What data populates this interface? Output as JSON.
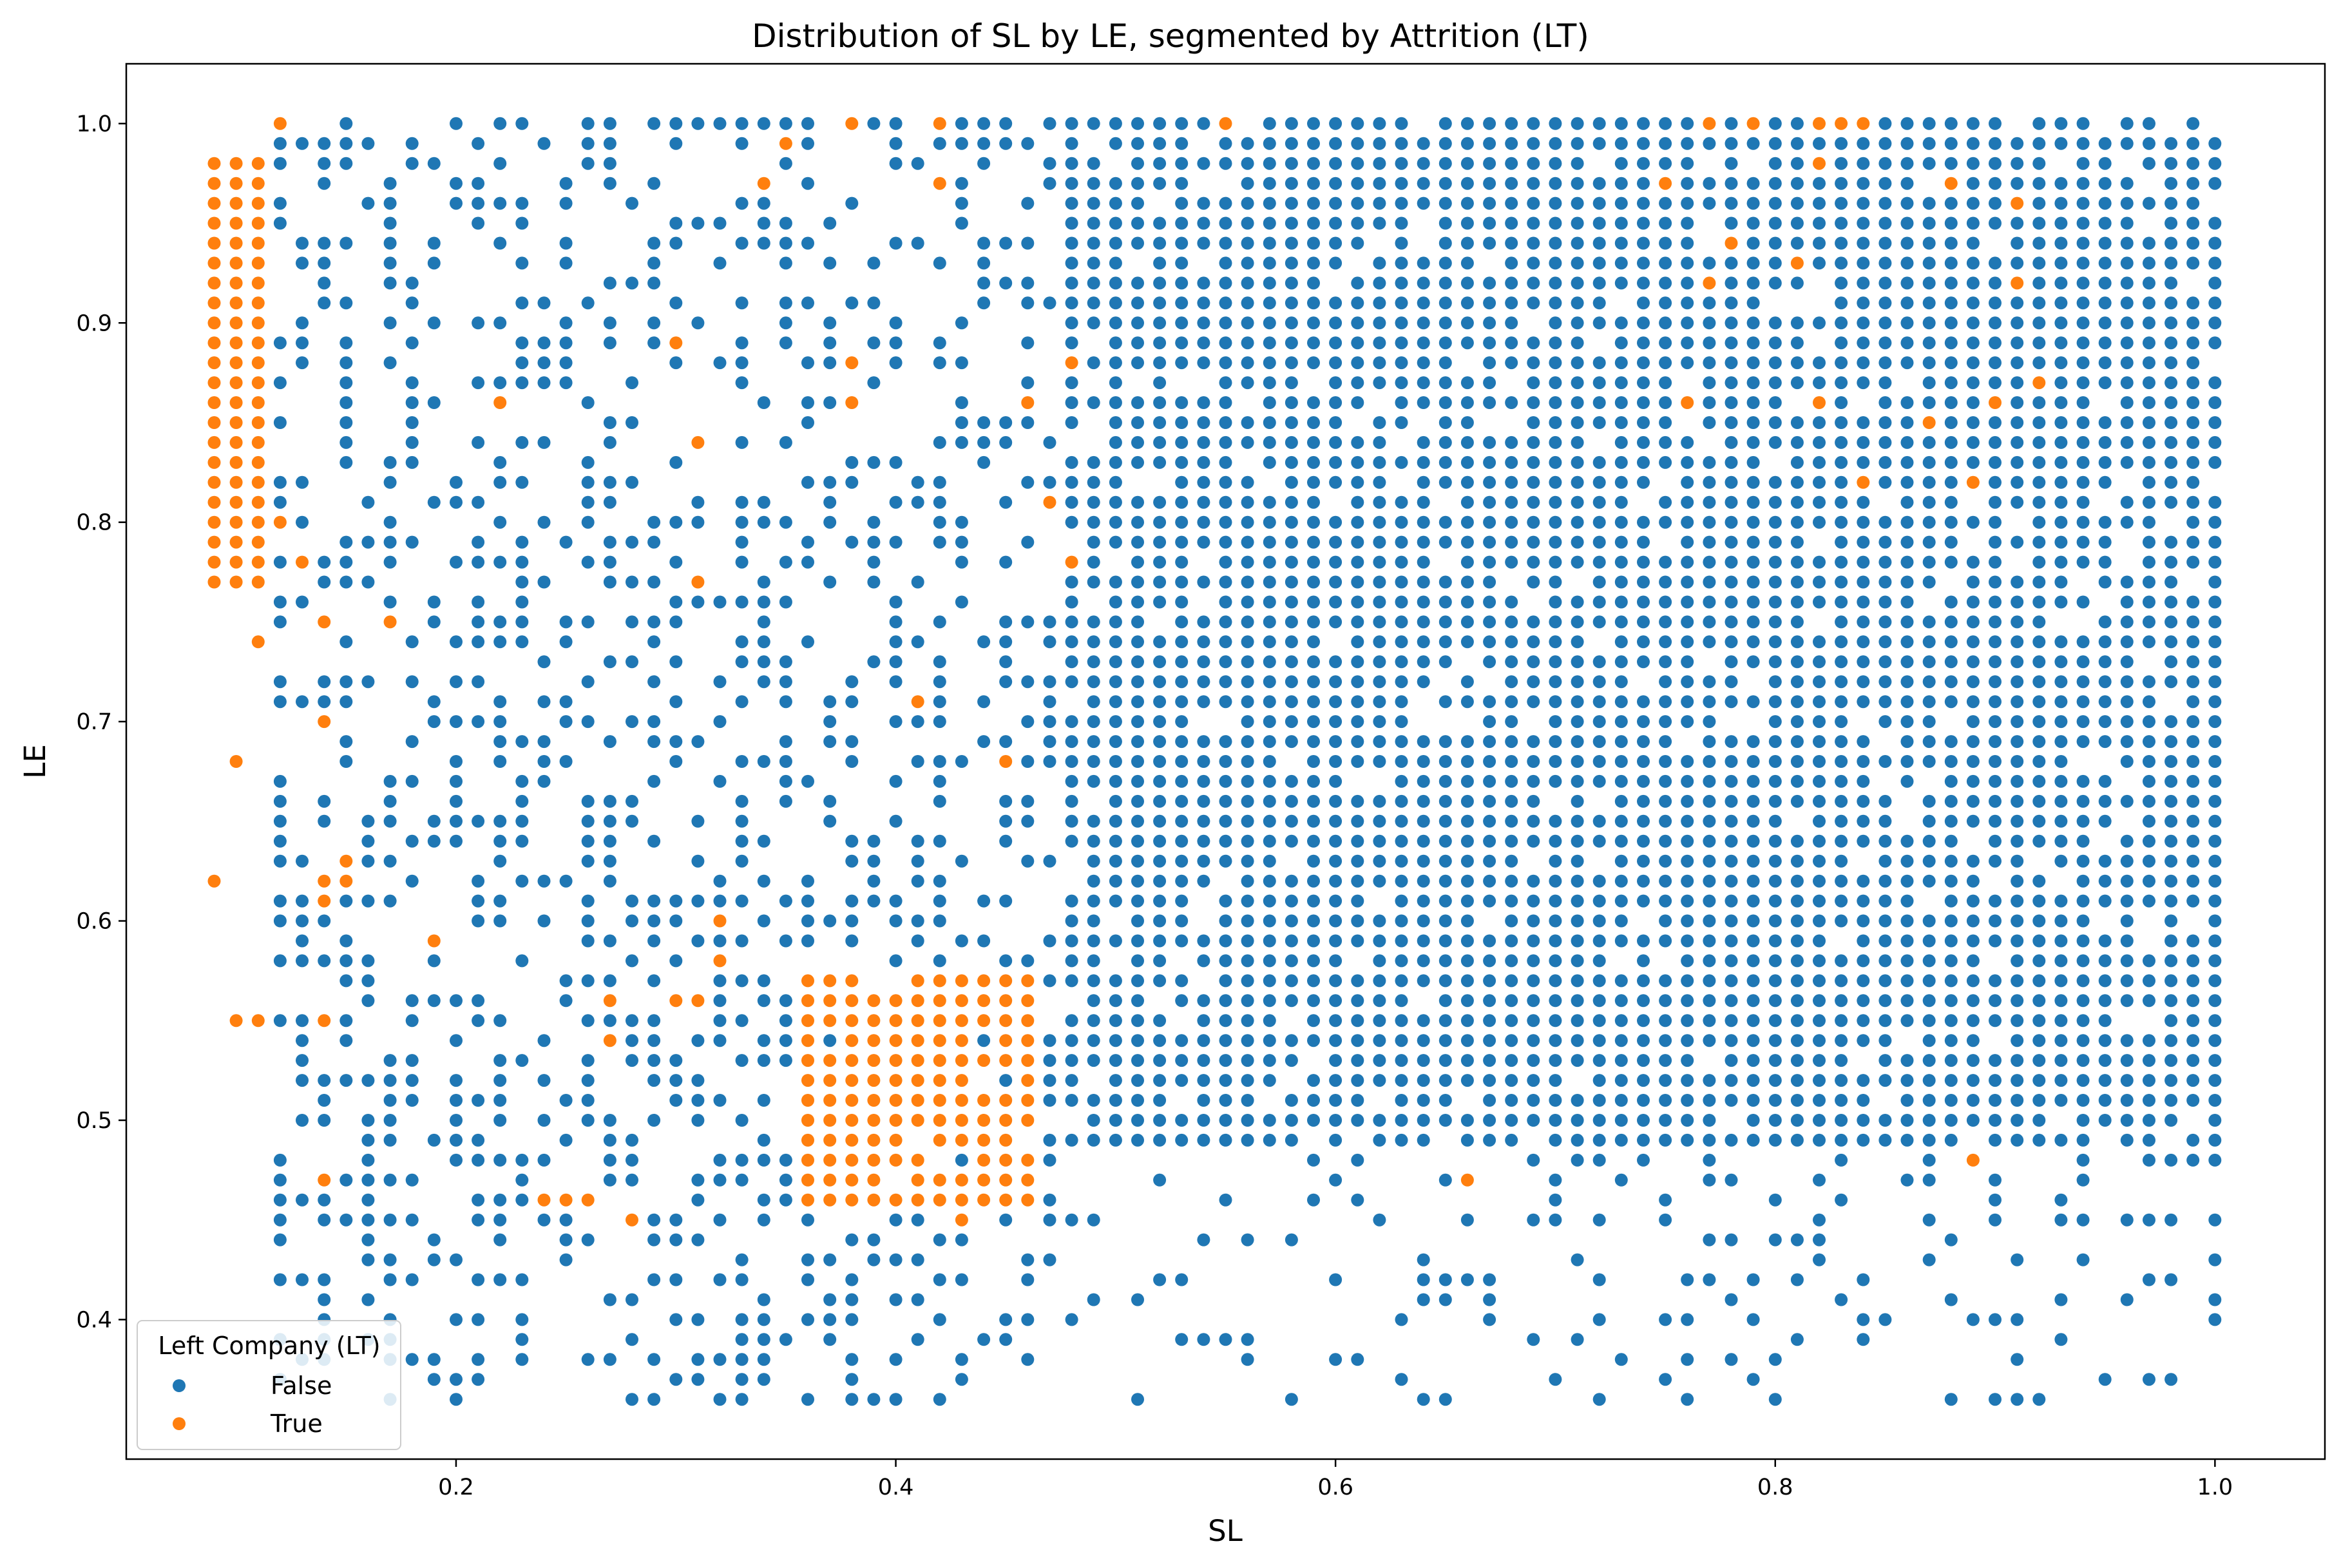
{
  "chart_data": {
    "type": "scatter",
    "title": "Distribution of SL by LE, segmented by Attrition (LT)",
    "xlabel": "SL",
    "ylabel": "LE",
    "xlim": [
      0.05,
      1.05
    ],
    "ylim": [
      0.33,
      1.03
    ],
    "xticks": [
      "0.2",
      "0.4",
      "0.6",
      "0.8",
      "1.0"
    ],
    "yticks": [
      "0.4",
      "0.5",
      "0.6",
      "0.7",
      "0.8",
      "0.9",
      "1.0"
    ],
    "grid": false,
    "legend": {
      "title": "Left Company (LT)",
      "placement": "lower-left",
      "entries": [
        {
          "label": "False",
          "color": "#1f77b4"
        },
        {
          "label": "True",
          "color": "#ff7f0e"
        }
      ]
    },
    "series": [
      {
        "name": "False",
        "color": "#1f77b4",
        "x_range": [
          0.12,
          1.0
        ],
        "y_range": [
          0.36,
          1.0
        ],
        "note_density": {
          "dense_block": {
            "x": [
              0.48,
              1.0
            ],
            "y": [
              0.49,
              1.0
            ]
          },
          "sparse_region": {
            "x": [
              0.12,
              0.47
            ],
            "y": [
              0.36,
              1.0
            ]
          },
          "sparse_bottom": {
            "x": [
              0.48,
              1.0
            ],
            "y": [
              0.36,
              0.48
            ]
          }
        }
      },
      {
        "name": "True",
        "color": "#ff7f0e",
        "clusters": [
          {
            "x": [
              0.09,
              0.11
            ],
            "y": [
              0.77,
              0.98
            ]
          },
          {
            "x": [
              0.36,
              0.46
            ],
            "y": [
              0.46,
              0.57
            ]
          }
        ],
        "points": [
          [
            0.09,
            0.62
          ],
          [
            0.1,
            0.68
          ],
          [
            0.1,
            0.55
          ],
          [
            0.11,
            0.55
          ],
          [
            0.11,
            0.74
          ],
          [
            0.12,
            1.0
          ],
          [
            0.12,
            0.8
          ],
          [
            0.13,
            0.78
          ],
          [
            0.14,
            0.75
          ],
          [
            0.14,
            0.7
          ],
          [
            0.14,
            0.62
          ],
          [
            0.14,
            0.61
          ],
          [
            0.15,
            0.63
          ],
          [
            0.15,
            0.62
          ],
          [
            0.14,
            0.55
          ],
          [
            0.14,
            0.47
          ],
          [
            0.17,
            0.75
          ],
          [
            0.19,
            0.59
          ],
          [
            0.22,
            0.86
          ],
          [
            0.24,
            0.46
          ],
          [
            0.25,
            0.46
          ],
          [
            0.26,
            0.46
          ],
          [
            0.27,
            0.56
          ],
          [
            0.27,
            0.54
          ],
          [
            0.28,
            0.45
          ],
          [
            0.3,
            0.89
          ],
          [
            0.3,
            0.56
          ],
          [
            0.31,
            0.56
          ],
          [
            0.31,
            0.84
          ],
          [
            0.31,
            0.77
          ],
          [
            0.32,
            0.6
          ],
          [
            0.32,
            0.58
          ],
          [
            0.34,
            0.97
          ],
          [
            0.35,
            0.99
          ],
          [
            0.38,
            1.0
          ],
          [
            0.38,
            0.88
          ],
          [
            0.38,
            0.86
          ],
          [
            0.41,
            0.71
          ],
          [
            0.42,
            1.0
          ],
          [
            0.42,
            0.97
          ],
          [
            0.43,
            0.45
          ],
          [
            0.45,
            0.68
          ],
          [
            0.46,
            0.86
          ],
          [
            0.47,
            0.81
          ],
          [
            0.48,
            0.88
          ],
          [
            0.48,
            0.78
          ],
          [
            0.55,
            1.0
          ],
          [
            0.66,
            0.47
          ],
          [
            0.75,
            0.97
          ],
          [
            0.76,
            0.86
          ],
          [
            0.77,
            1.0
          ],
          [
            0.77,
            0.92
          ],
          [
            0.78,
            0.94
          ],
          [
            0.79,
            1.0
          ],
          [
            0.81,
            0.93
          ],
          [
            0.82,
            1.0
          ],
          [
            0.82,
            0.98
          ],
          [
            0.82,
            0.86
          ],
          [
            0.83,
            1.0
          ],
          [
            0.84,
            1.0
          ],
          [
            0.84,
            0.82
          ],
          [
            0.87,
            0.85
          ],
          [
            0.88,
            0.97
          ],
          [
            0.89,
            0.82
          ],
          [
            0.89,
            0.48
          ],
          [
            0.9,
            0.86
          ],
          [
            0.91,
            0.96
          ],
          [
            0.91,
            0.92
          ],
          [
            0.92,
            0.87
          ]
        ]
      }
    ]
  }
}
